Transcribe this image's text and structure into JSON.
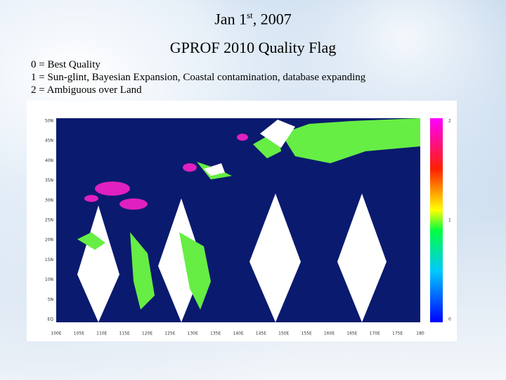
{
  "header": {
    "title_parts": [
      "Jan 1",
      "st",
      ", 2007"
    ],
    "subtitle": "GPROF 2010 Quality Flag"
  },
  "legend": [
    "0 = Best Quality",
    "1 = Sun-glint,  Bayesian Expansion, Coastal contamination,  database expanding",
    "2 = Ambiguous over Land"
  ],
  "map": {
    "lat_labels": [
      "50N",
      "45N",
      "40N",
      "35N",
      "30N",
      "25N",
      "20N",
      "15N",
      "10N",
      "5N",
      "EQ"
    ],
    "lon_labels": [
      "100E",
      "105E",
      "110E",
      "115E",
      "120E",
      "125E",
      "130E",
      "135E",
      "140E",
      "145E",
      "150E",
      "155E",
      "160E",
      "165E",
      "170E",
      "175E",
      "180"
    ],
    "colorbar_labels": [
      "2",
      "1",
      "0"
    ]
  }
}
